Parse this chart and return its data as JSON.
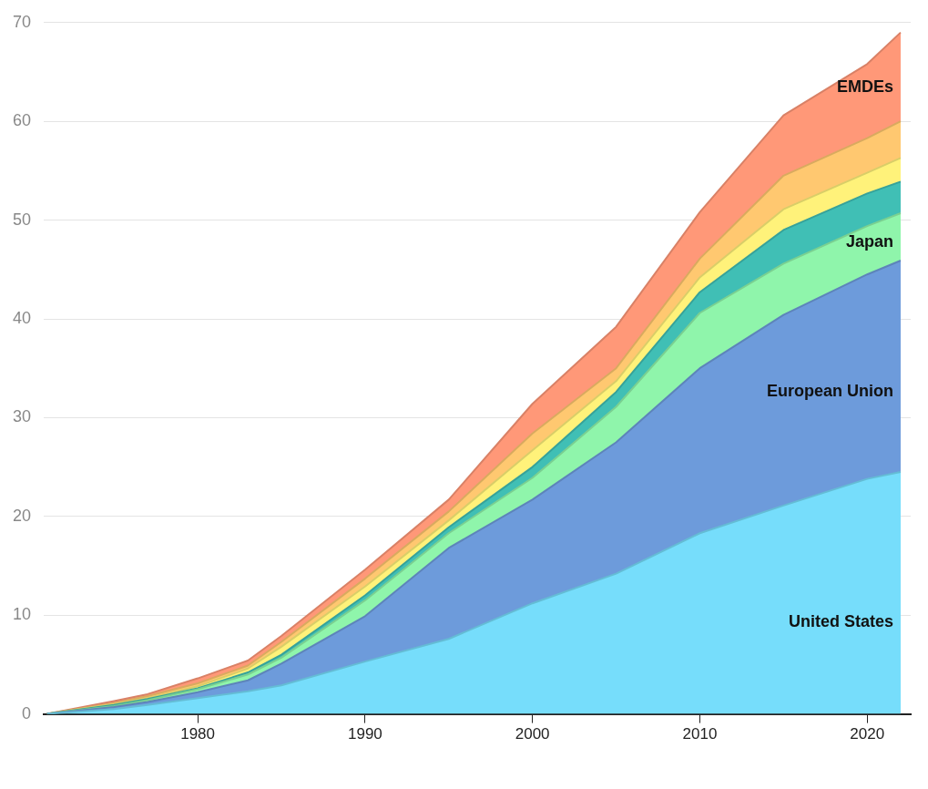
{
  "chart_data": {
    "type": "area",
    "stacked": true,
    "x": [
      1971,
      1975,
      1977,
      1980,
      1983,
      1985,
      1990,
      1995,
      2000,
      2005,
      2010,
      2015,
      2020,
      2022
    ],
    "xlim": [
      1970.8,
      2022.6
    ],
    "xticks": [
      1980,
      1990,
      2000,
      2010,
      2020
    ],
    "ylim": [
      0,
      70
    ],
    "yticks": [
      0,
      10,
      20,
      30,
      40,
      50,
      60,
      70
    ],
    "grid": "y",
    "legend": false,
    "series": [
      {
        "name": "United States",
        "color": "#76ddfb",
        "values": [
          0,
          0.5,
          0.9,
          1.6,
          2.3,
          2.9,
          5.3,
          7.6,
          11.2,
          14.2,
          18.3,
          21.1,
          23.8,
          24.5
        ]
      },
      {
        "name": "European Union",
        "color": "#6d9bdb",
        "values": [
          0,
          0.2,
          0.3,
          0.6,
          1.1,
          2.2,
          4.6,
          9.2,
          10.5,
          13.3,
          16.7,
          19.3,
          20.7,
          21.4
        ]
      },
      {
        "name": "Japan",
        "color": "#8ff5ab",
        "values": [
          0,
          0.1,
          0.2,
          0.3,
          0.6,
          0.6,
          1.6,
          1.5,
          2.2,
          3.6,
          5.6,
          5.2,
          4.9,
          4.8
        ]
      },
      {
        "color": "#40bfb5",
        "values": [
          0,
          0.1,
          0.1,
          0.1,
          0.2,
          0.3,
          0.5,
          0.6,
          1.1,
          1.5,
          2.1,
          3.4,
          3.3,
          3.2
        ]
      },
      {
        "color": "#fff27a",
        "values": [
          0,
          0.1,
          0.1,
          0.2,
          0.4,
          0.8,
          0.9,
          0.7,
          1.7,
          1.1,
          1.5,
          2.1,
          2.1,
          2.4
        ]
      },
      {
        "color": "#ffc870",
        "values": [
          0,
          0.1,
          0.2,
          0.3,
          0.3,
          0.5,
          0.8,
          0.9,
          1.7,
          1.3,
          1.9,
          3.4,
          3.5,
          3.7
        ]
      },
      {
        "name": "EMDEs",
        "color": "#ff9878",
        "values": [
          0,
          0.2,
          0.2,
          0.5,
          0.5,
          0.6,
          0.9,
          1.2,
          3.0,
          4.2,
          4.7,
          6.1,
          7.5,
          9.0
        ]
      }
    ]
  }
}
